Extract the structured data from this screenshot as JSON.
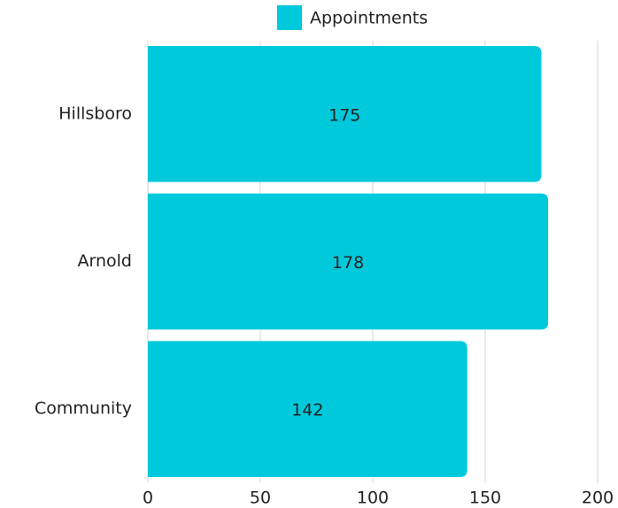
{
  "chart_data": {
    "type": "hbar",
    "categories": [
      "Hillsboro",
      "Arnold",
      "Community"
    ],
    "series": [
      {
        "name": "Appointments",
        "color": "#00c9dc",
        "values": [
          175,
          178,
          142
        ]
      }
    ],
    "xlim": [
      0,
      200
    ],
    "xticks": [
      0,
      50,
      100,
      150,
      200
    ],
    "grid": true,
    "legend": "top"
  }
}
